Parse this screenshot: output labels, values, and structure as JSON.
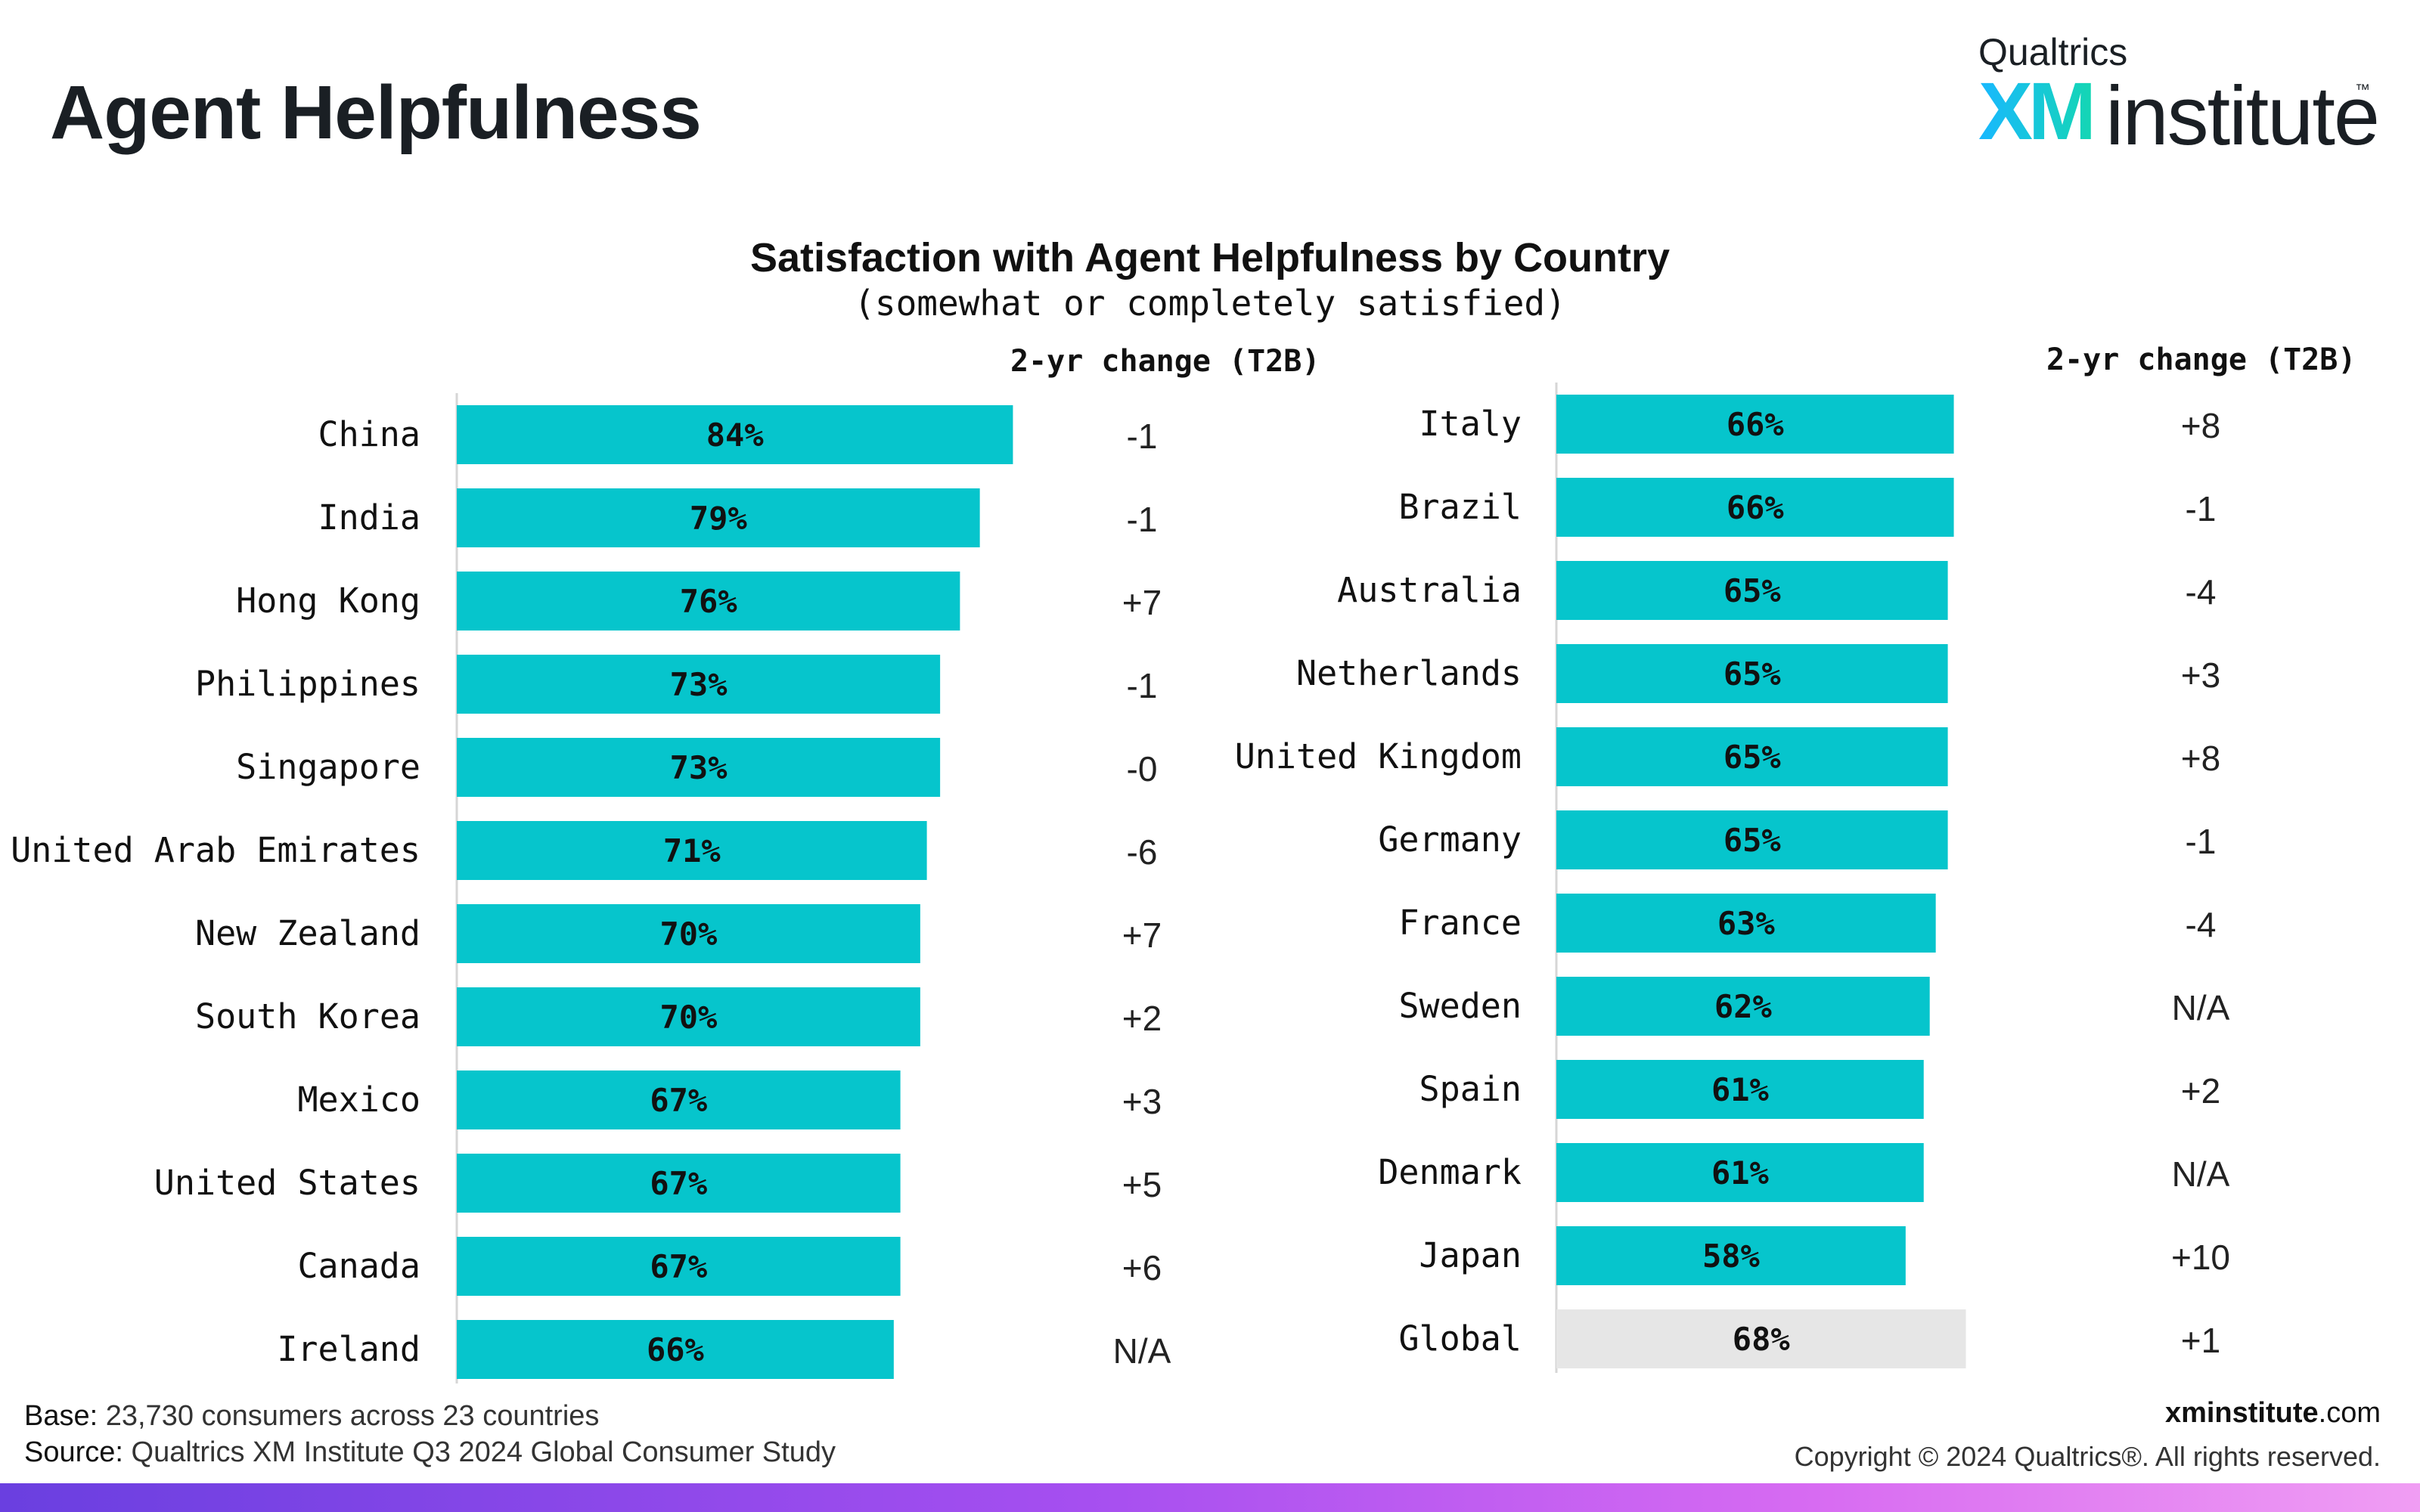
{
  "header": {
    "title": "Agent Helpfulness"
  },
  "brand": {
    "top": "Qualtrics",
    "xm": "XM",
    "institute": "institute",
    "tm": "™"
  },
  "colors": {
    "bar": "#06c5cc",
    "global_bar": "#e6e6e6",
    "xm_gradient_start": "#19b8ff",
    "xm_gradient_end": "#14d6b4",
    "footer_band_start": "#6a3fe0",
    "footer_band_end": "#f09df3"
  },
  "chart_data": {
    "type": "bar",
    "orientation": "horizontal",
    "title": "Satisfaction with Agent Helpfulness by Country",
    "subtitle": "(somewhat or completely satisfied)",
    "change_header": "2-yr change (T2B)",
    "xlim": [
      0,
      100
    ],
    "panels": [
      {
        "categories": [
          "China",
          "India",
          "Hong Kong",
          "Philippines",
          "Singapore",
          "United Arab Emirates",
          "New Zealand",
          "South Korea",
          "Mexico",
          "United States",
          "Canada",
          "Ireland"
        ],
        "values": [
          84,
          79,
          76,
          73,
          73,
          71,
          70,
          70,
          67,
          67,
          67,
          66
        ],
        "value_labels": [
          "84%",
          "79%",
          "76%",
          "73%",
          "73%",
          "71%",
          "70%",
          "70%",
          "67%",
          "67%",
          "67%",
          "66%"
        ],
        "changes": [
          "-1",
          "-1",
          "+7",
          "-1",
          "-0",
          "-6",
          "+7",
          "+2",
          "+3",
          "+5",
          "+6",
          "N/A"
        ]
      },
      {
        "categories": [
          "Italy",
          "Brazil",
          "Australia",
          "Netherlands",
          "United Kingdom",
          "Germany",
          "France",
          "Sweden",
          "Spain",
          "Denmark",
          "Japan",
          "Global"
        ],
        "values": [
          66,
          66,
          65,
          65,
          65,
          65,
          63,
          62,
          61,
          61,
          58,
          68
        ],
        "value_labels": [
          "66%",
          "66%",
          "65%",
          "65%",
          "65%",
          "65%",
          "63%",
          "62%",
          "61%",
          "61%",
          "58%",
          "68%"
        ],
        "changes": [
          "+8",
          "-1",
          "-4",
          "+3",
          "+8",
          "-1",
          "-4",
          "N/A",
          "+2",
          "N/A",
          "+10",
          "+1"
        ],
        "highlight": "Global"
      }
    ]
  },
  "footer": {
    "base_label": "Base:",
    "base_text": "23,730 consumers across 23 countries",
    "source_label": "Source:",
    "source_text": "Qualtrics XM Institute Q3 2024 Global Consumer Study",
    "site_bold": "xminstitute",
    "site_rest": ".com",
    "copyright": "Copyright © 2024 Qualtrics®. All rights reserved."
  }
}
